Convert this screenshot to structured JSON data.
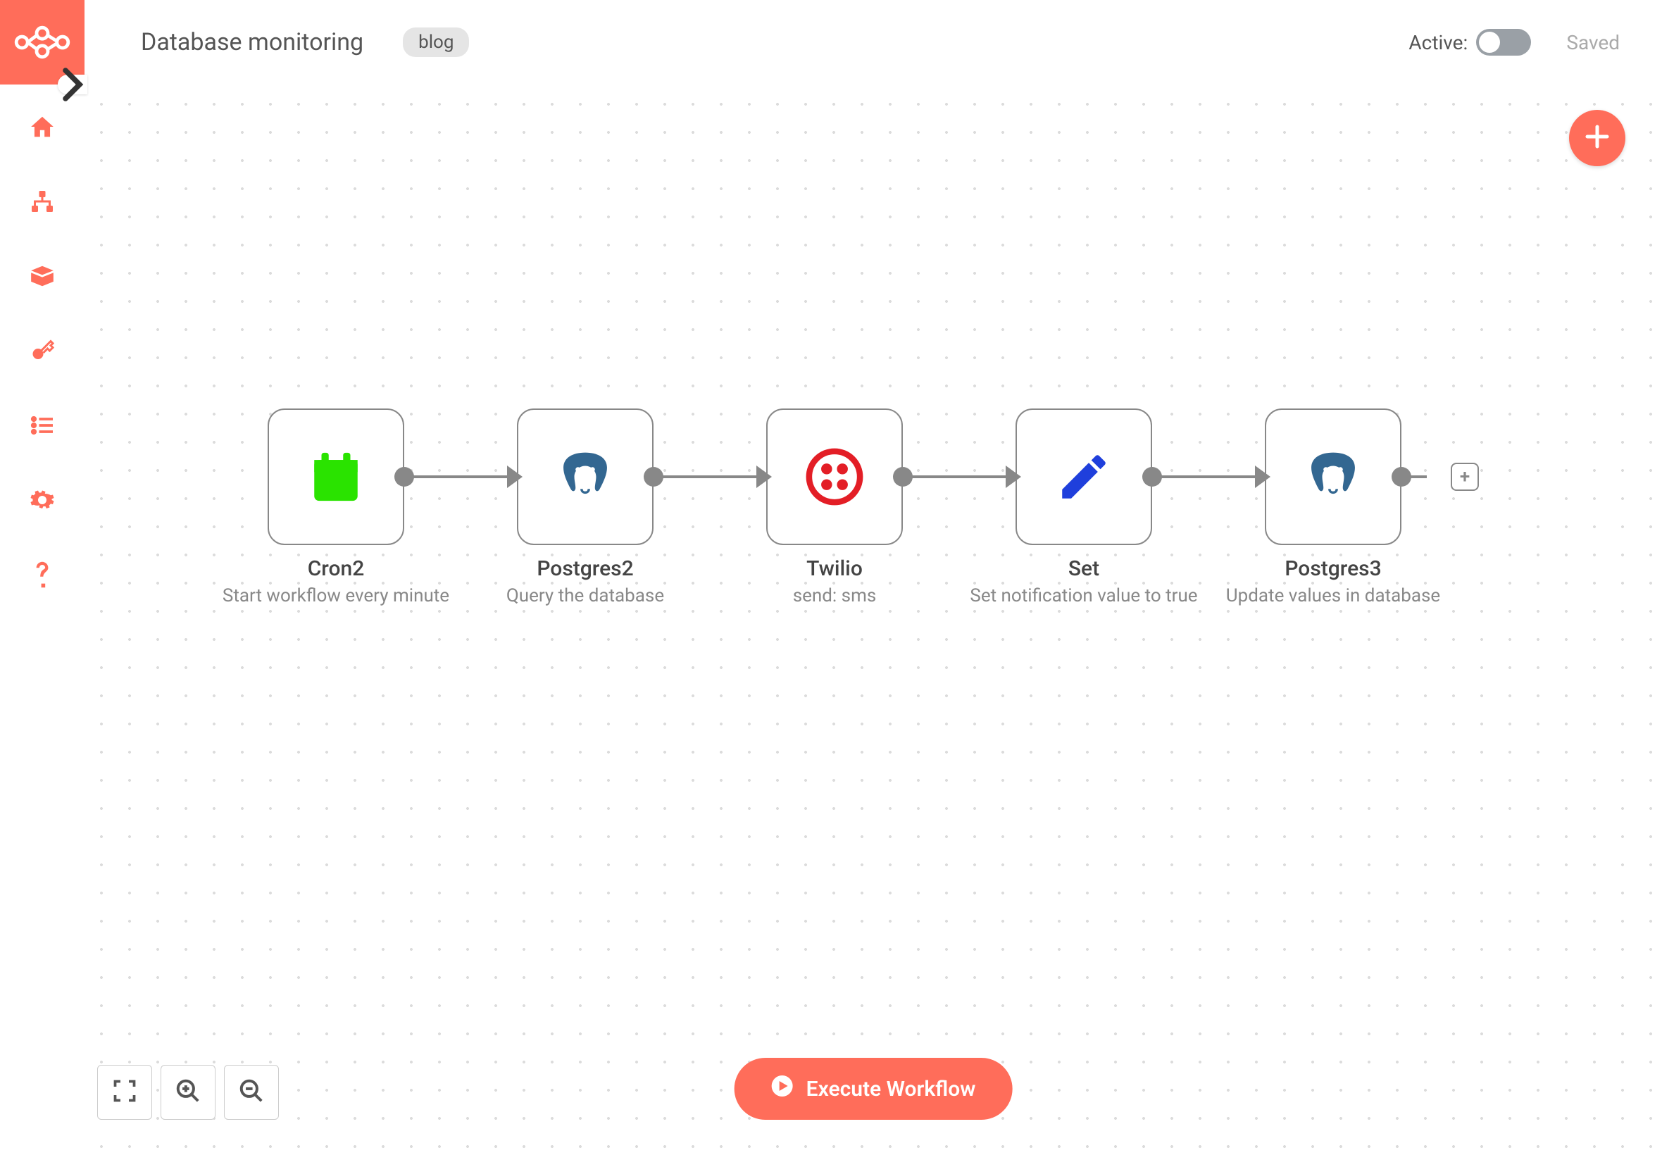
{
  "colors": {
    "accent": "#ff6d5a",
    "gray": "#888888",
    "green": "#2ae300",
    "blue": "#1f3fdc",
    "twilio_red": "#e31e26",
    "postgres_blue": "#336791"
  },
  "header": {
    "title": "Database monitoring",
    "tag": "blog",
    "active_label": "Active:",
    "active": false,
    "status": "Saved"
  },
  "sidebar": {
    "items": [
      {
        "name": "home"
      },
      {
        "name": "workflows"
      },
      {
        "name": "box"
      },
      {
        "name": "credentials"
      },
      {
        "name": "executions"
      },
      {
        "name": "settings"
      },
      {
        "name": "help"
      }
    ]
  },
  "execute_label": "Execute Workflow",
  "nodes": [
    {
      "id": "cron",
      "title": "Cron2",
      "subtitle": "Start workflow every minute",
      "icon": "calendar",
      "has_in": false,
      "has_out": true,
      "icon_color": "#2ae300"
    },
    {
      "id": "pg1",
      "title": "Postgres2",
      "subtitle": "Query the database",
      "icon": "postgres",
      "has_in": true,
      "has_out": true,
      "icon_color": "#336791"
    },
    {
      "id": "twilio",
      "title": "Twilio",
      "subtitle": "send: sms",
      "icon": "twilio",
      "has_in": true,
      "has_out": true,
      "icon_color": "#e31e26"
    },
    {
      "id": "set",
      "title": "Set",
      "subtitle": "Set notification value to true",
      "icon": "pencil",
      "has_in": true,
      "has_out": true,
      "icon_color": "#1f3fdc"
    },
    {
      "id": "pg2",
      "title": "Postgres3",
      "subtitle": "Update values in database",
      "icon": "postgres",
      "has_in": true,
      "has_out": true,
      "icon_color": "#336791"
    }
  ]
}
